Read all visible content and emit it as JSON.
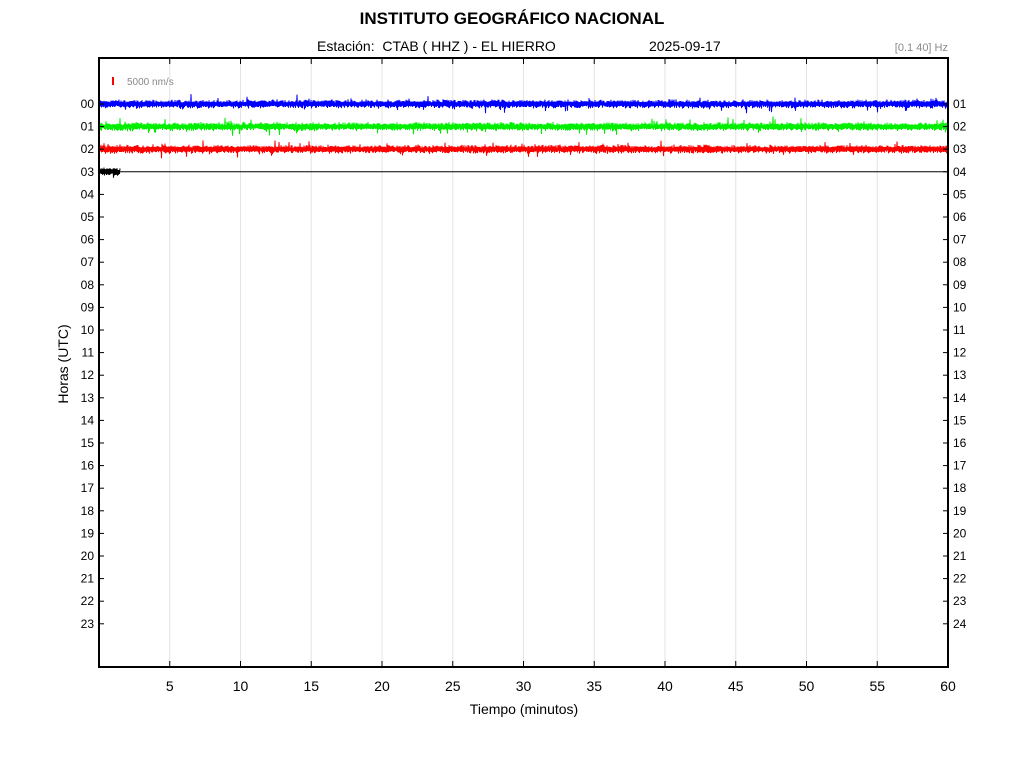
{
  "header": {
    "title": "INSTITUTO GEOGRÁFICO NACIONAL",
    "station": "Estación:  CTAB ( HHZ ) - EL HIERRO",
    "date": "2025-09-17",
    "filter": "[0.1 40] Hz"
  },
  "chart_data": {
    "type": "line",
    "title": "INSTITUTO GEOGRÁFICO NACIONAL",
    "xlabel": "Tiempo (minutos)",
    "ylabel": "Horas (UTC)",
    "xlim": [
      0,
      60
    ],
    "x_ticks": [
      5,
      10,
      15,
      20,
      25,
      30,
      35,
      40,
      45,
      50,
      55,
      60
    ],
    "left_hour_labels": [
      "00",
      "01",
      "02",
      "03",
      "04",
      "05",
      "06",
      "07",
      "08",
      "09",
      "10",
      "11",
      "12",
      "13",
      "14",
      "15",
      "16",
      "17",
      "18",
      "19",
      "20",
      "21",
      "22",
      "23"
    ],
    "right_hour_labels": [
      "01",
      "02",
      "03",
      "04",
      "05",
      "06",
      "07",
      "08",
      "09",
      "10",
      "11",
      "12",
      "13",
      "14",
      "15",
      "16",
      "17",
      "18",
      "19",
      "20",
      "21",
      "22",
      "23",
      "24"
    ],
    "scale_bar_label": "5000 nm/s",
    "scale_bar_color": "#ff0000",
    "grid": true,
    "series": [
      {
        "hour": "00",
        "color": "#0000ff",
        "minutes_recorded": 60
      },
      {
        "hour": "01",
        "color": "#00ee00",
        "minutes_recorded": 60
      },
      {
        "hour": "02",
        "color": "#ff0000",
        "minutes_recorded": 60
      },
      {
        "hour": "03",
        "color": "#000000",
        "minutes_recorded": 1.5
      }
    ]
  }
}
